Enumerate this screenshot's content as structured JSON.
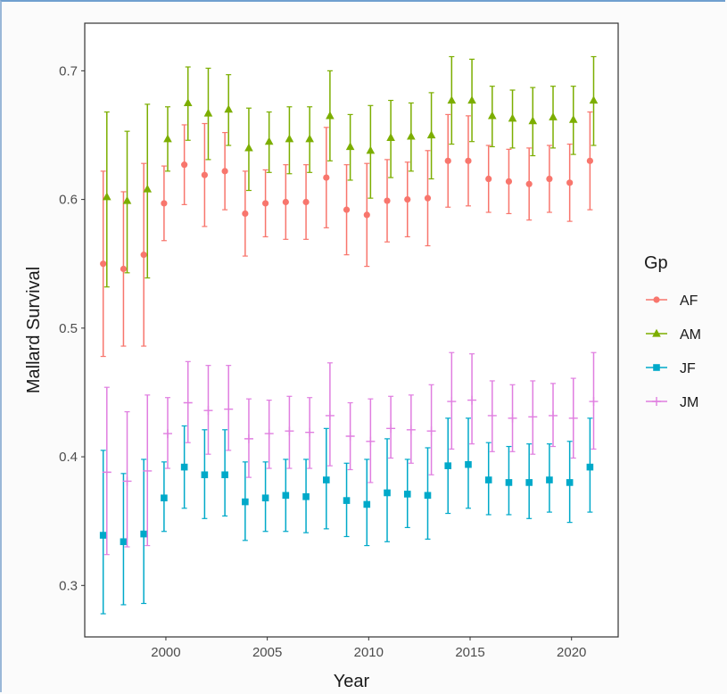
{
  "chart_data": {
    "type": "scatter",
    "xlabel": "Year",
    "ylabel": "Mallard Survival",
    "xlim": [
      1996,
      2022.3
    ],
    "ylim": [
      0.26,
      0.737
    ],
    "x_ticks": [
      2000,
      2005,
      2010,
      2015,
      2020
    ],
    "y_ticks": [
      0.3,
      0.4,
      0.5,
      0.6,
      0.7
    ],
    "x_tick_labels": [
      "2000",
      "2005",
      "2010",
      "2015",
      "2020"
    ],
    "y_tick_labels": [
      "0.3",
      "0.4",
      "0.5",
      "0.6",
      "0.7"
    ],
    "grid": false,
    "legend": {
      "title": "Gp",
      "placement": "right"
    },
    "x": [
      1997,
      1998,
      1999,
      2000,
      2001,
      2002,
      2003,
      2004,
      2005,
      2006,
      2007,
      2008,
      2009,
      2010,
      2011,
      2012,
      2013,
      2014,
      2015,
      2016,
      2017,
      2018,
      2019,
      2020,
      2021
    ],
    "series": [
      {
        "name": "AF",
        "color": "#f8766d",
        "marker": "circle",
        "values": [
          0.55,
          0.546,
          0.557,
          0.597,
          0.627,
          0.619,
          0.622,
          0.589,
          0.597,
          0.598,
          0.598,
          0.617,
          0.592,
          0.588,
          0.599,
          0.6,
          0.601,
          0.63,
          0.63,
          0.616,
          0.614,
          0.612,
          0.616,
          0.613,
          0.63
        ],
        "lower": [
          0.478,
          0.486,
          0.486,
          0.568,
          0.596,
          0.579,
          0.592,
          0.556,
          0.571,
          0.569,
          0.569,
          0.578,
          0.557,
          0.548,
          0.567,
          0.571,
          0.564,
          0.594,
          0.595,
          0.59,
          0.589,
          0.584,
          0.59,
          0.583,
          0.592
        ],
        "upper": [
          0.622,
          0.606,
          0.628,
          0.626,
          0.658,
          0.659,
          0.652,
          0.622,
          0.623,
          0.627,
          0.627,
          0.656,
          0.627,
          0.628,
          0.631,
          0.629,
          0.638,
          0.666,
          0.665,
          0.642,
          0.639,
          0.64,
          0.642,
          0.643,
          0.668
        ]
      },
      {
        "name": "AM",
        "color": "#7cae00",
        "marker": "triangle",
        "values": [
          0.602,
          0.599,
          0.608,
          0.647,
          0.675,
          0.667,
          0.67,
          0.64,
          0.645,
          0.647,
          0.647,
          0.665,
          0.641,
          0.638,
          0.648,
          0.649,
          0.65,
          0.677,
          0.677,
          0.665,
          0.663,
          0.661,
          0.664,
          0.662,
          0.677
        ],
        "lower": [
          0.532,
          0.543,
          0.539,
          0.622,
          0.646,
          0.631,
          0.642,
          0.607,
          0.621,
          0.62,
          0.621,
          0.63,
          0.615,
          0.601,
          0.617,
          0.622,
          0.616,
          0.643,
          0.645,
          0.641,
          0.64,
          0.634,
          0.64,
          0.635,
          0.642
        ],
        "upper": [
          0.668,
          0.653,
          0.674,
          0.672,
          0.703,
          0.702,
          0.697,
          0.671,
          0.668,
          0.672,
          0.672,
          0.7,
          0.666,
          0.673,
          0.677,
          0.675,
          0.683,
          0.711,
          0.709,
          0.688,
          0.685,
          0.687,
          0.688,
          0.688,
          0.711
        ]
      },
      {
        "name": "JF",
        "color": "#00a9c9",
        "marker": "square",
        "values": [
          0.339,
          0.334,
          0.34,
          0.368,
          0.392,
          0.386,
          0.386,
          0.365,
          0.368,
          0.37,
          0.369,
          0.382,
          0.366,
          0.363,
          0.372,
          0.371,
          0.37,
          0.393,
          0.394,
          0.382,
          0.38,
          0.38,
          0.382,
          0.38,
          0.392
        ],
        "lower": [
          0.278,
          0.285,
          0.286,
          0.342,
          0.36,
          0.352,
          0.354,
          0.335,
          0.342,
          0.342,
          0.341,
          0.344,
          0.338,
          0.331,
          0.334,
          0.345,
          0.336,
          0.356,
          0.36,
          0.355,
          0.355,
          0.352,
          0.357,
          0.349,
          0.357
        ],
        "upper": [
          0.405,
          0.387,
          0.398,
          0.396,
          0.424,
          0.421,
          0.421,
          0.396,
          0.396,
          0.398,
          0.398,
          0.422,
          0.395,
          0.398,
          0.414,
          0.398,
          0.407,
          0.43,
          0.43,
          0.411,
          0.408,
          0.41,
          0.41,
          0.412,
          0.43
        ]
      },
      {
        "name": "JM",
        "color": "#e07ee0",
        "marker": "plus",
        "values": [
          0.388,
          0.381,
          0.389,
          0.418,
          0.442,
          0.436,
          0.437,
          0.414,
          0.418,
          0.42,
          0.419,
          0.432,
          0.416,
          0.412,
          0.422,
          0.421,
          0.42,
          0.443,
          0.444,
          0.432,
          0.43,
          0.431,
          0.432,
          0.43,
          0.443
        ],
        "lower": [
          0.324,
          0.33,
          0.331,
          0.391,
          0.411,
          0.402,
          0.405,
          0.384,
          0.391,
          0.391,
          0.391,
          0.393,
          0.39,
          0.38,
          0.399,
          0.395,
          0.386,
          0.406,
          0.41,
          0.404,
          0.404,
          0.402,
          0.408,
          0.399,
          0.406
        ],
        "upper": [
          0.454,
          0.435,
          0.448,
          0.446,
          0.474,
          0.471,
          0.471,
          0.445,
          0.444,
          0.447,
          0.446,
          0.473,
          0.442,
          0.445,
          0.447,
          0.448,
          0.456,
          0.481,
          0.48,
          0.459,
          0.456,
          0.459,
          0.457,
          0.461,
          0.481
        ]
      }
    ]
  }
}
